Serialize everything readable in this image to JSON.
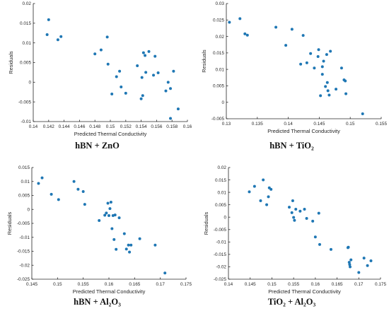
{
  "style": {
    "point_color": "#1f77b4",
    "axis_color": "#262626"
  },
  "chart_data": [
    {
      "type": "scatter",
      "title": "hBN + ZnO",
      "xlabel": "Predicted Thermal Conductivity",
      "ylabel": "Residuals",
      "xlim": [
        0.14,
        0.16
      ],
      "ylim": [
        -0.01,
        0.02
      ],
      "xticks": [
        "0.14",
        "0.142",
        "0.144",
        "0.146",
        "0.148",
        "0.15",
        "0.152",
        "0.154",
        "0.156",
        "0.158",
        "0.16"
      ],
      "yticks": [
        "-0.01",
        "-0.005",
        "0",
        "0.005",
        "0.01",
        "0.015",
        "0.02"
      ],
      "xtick_values": [
        0.14,
        0.142,
        0.144,
        0.146,
        0.148,
        0.15,
        0.152,
        0.154,
        0.156,
        0.158,
        0.16
      ],
      "ytick_values": [
        -0.01,
        -0.005,
        0,
        0.005,
        0.01,
        0.015,
        0.02
      ],
      "points": [
        [
          0.142,
          0.0159
        ],
        [
          0.1418,
          0.0121
        ],
        [
          0.1432,
          0.0108
        ],
        [
          0.1436,
          0.0116
        ],
        [
          0.148,
          0.0072
        ],
        [
          0.1488,
          0.0082
        ],
        [
          0.1496,
          0.0115
        ],
        [
          0.1497,
          0.0046
        ],
        [
          0.1502,
          -0.003
        ],
        [
          0.1508,
          0.0014
        ],
        [
          0.1512,
          0.0028
        ],
        [
          0.1514,
          -0.0012
        ],
        [
          0.152,
          -0.0028
        ],
        [
          0.1535,
          0.0042
        ],
        [
          0.154,
          -0.0042
        ],
        [
          0.1541,
          0.0012
        ],
        [
          0.1542,
          -0.0034
        ],
        [
          0.1543,
          0.0075
        ],
        [
          0.1545,
          0.0068
        ],
        [
          0.1546,
          0.0025
        ],
        [
          0.155,
          0.0078
        ],
        [
          0.1556,
          0.0018
        ],
        [
          0.1558,
          0.0066
        ],
        [
          0.1562,
          0.0024
        ],
        [
          0.1572,
          -0.0022
        ],
        [
          0.1575,
          0.0
        ],
        [
          0.1578,
          -0.0092
        ],
        [
          0.1582,
          0.0028
        ],
        [
          0.1578,
          -0.0016
        ],
        [
          0.1588,
          -0.0068
        ]
      ]
    },
    {
      "type": "scatter",
      "title": "hBN + TiO₂",
      "xlabel": "Predicted Thermal Conductivity",
      "ylabel": "Residuals",
      "xlim": [
        0.13,
        0.155
      ],
      "ylim": [
        -0.005,
        0.03
      ],
      "xticks": [
        "0.13",
        "0.135",
        "0.14",
        "0.145",
        "0.15",
        "0.155"
      ],
      "yticks": [
        "-0.005",
        "0",
        "0.005",
        "0.01",
        "0.015",
        "0.02",
        "0.025",
        "0.03"
      ],
      "xtick_values": [
        0.13,
        0.135,
        0.14,
        0.145,
        0.15,
        0.155
      ],
      "ytick_values": [
        -0.005,
        0,
        0.005,
        0.01,
        0.015,
        0.02,
        0.025,
        0.03
      ],
      "points": [
        [
          0.1305,
          0.0243
        ],
        [
          0.1322,
          0.0254
        ],
        [
          0.133,
          0.0208
        ],
        [
          0.1334,
          0.0204
        ],
        [
          0.138,
          0.0228
        ],
        [
          0.1396,
          0.0173
        ],
        [
          0.1406,
          0.0222
        ],
        [
          0.142,
          0.0116
        ],
        [
          0.1424,
          0.0203
        ],
        [
          0.143,
          0.012
        ],
        [
          0.1436,
          0.0148
        ],
        [
          0.1442,
          0.0104
        ],
        [
          0.1448,
          0.0139
        ],
        [
          0.1449,
          0.016
        ],
        [
          0.1452,
          0.002
        ],
        [
          0.1455,
          0.0108
        ],
        [
          0.1455,
          0.0085
        ],
        [
          0.1457,
          0.0125
        ],
        [
          0.146,
          0.0048
        ],
        [
          0.1462,
          0.0145
        ],
        [
          0.1463,
          0.006
        ],
        [
          0.1464,
          0.0035
        ],
        [
          0.1466,
          0.0022
        ],
        [
          0.1468,
          0.0155
        ],
        [
          0.1477,
          0.004
        ],
        [
          0.1486,
          0.0104
        ],
        [
          0.149,
          0.0068
        ],
        [
          0.1492,
          0.0065
        ],
        [
          0.1493,
          0.0026
        ],
        [
          0.152,
          -0.0035
        ]
      ]
    },
    {
      "type": "scatter",
      "title": "hBN + Al₂O₃",
      "xlabel": "Predicted Thermal Conductivity",
      "ylabel": "Residuals",
      "xlim": [
        0.145,
        0.175
      ],
      "ylim": [
        -0.025,
        0.015
      ],
      "xticks": [
        "0.145",
        "0.15",
        "0.155",
        "0.16",
        "0.165",
        "0.17",
        "0.175"
      ],
      "yticks": [
        "-0.025",
        "-0.02",
        "-0.015",
        "-0.01",
        "-0.005",
        "0",
        "0.005",
        "0.01",
        "0.015"
      ],
      "xtick_values": [
        0.145,
        0.15,
        0.155,
        0.16,
        0.165,
        0.17,
        0.175
      ],
      "ytick_values": [
        -0.025,
        -0.02,
        -0.015,
        -0.01,
        -0.005,
        0,
        0.005,
        0.01,
        0.015
      ],
      "points": [
        [
          0.1463,
          0.0093
        ],
        [
          0.147,
          0.0113
        ],
        [
          0.1488,
          0.0054
        ],
        [
          0.1502,
          0.0035
        ],
        [
          0.1532,
          0.01
        ],
        [
          0.154,
          0.0072
        ],
        [
          0.155,
          0.0064
        ],
        [
          0.1553,
          0.0018
        ],
        [
          0.1581,
          -0.004
        ],
        [
          0.1592,
          -0.0021
        ],
        [
          0.1595,
          -0.0013
        ],
        [
          0.1598,
          0.0022
        ],
        [
          0.16,
          -0.0022
        ],
        [
          0.1602,
          0.0003
        ],
        [
          0.1604,
          0.0026
        ],
        [
          0.1606,
          -0.0069
        ],
        [
          0.1608,
          -0.0022
        ],
        [
          0.161,
          -0.0108
        ],
        [
          0.1612,
          -0.002
        ],
        [
          0.1614,
          -0.0143
        ],
        [
          0.162,
          -0.003
        ],
        [
          0.163,
          -0.0087
        ],
        [
          0.1634,
          -0.0142
        ],
        [
          0.1638,
          -0.0128
        ],
        [
          0.164,
          -0.0153
        ],
        [
          0.1643,
          -0.0128
        ],
        [
          0.166,
          -0.0105
        ],
        [
          0.169,
          -0.0128
        ],
        [
          0.1709,
          -0.0228
        ]
      ]
    },
    {
      "type": "scatter",
      "title": "TiO₂ + Al₂O₃",
      "xlabel": "Predicted Thermal Conductivity",
      "ylabel": "Residuals",
      "xlim": [
        0.14,
        0.175
      ],
      "ylim": [
        -0.025,
        0.02
      ],
      "xticks": [
        "0.14",
        "0.145",
        "0.15",
        "0.155",
        "0.16",
        "0.165",
        "0.17",
        "0.175"
      ],
      "yticks": [
        "-0.025",
        "-0.02",
        "-0.015",
        "-0.01",
        "-0.005",
        "0",
        "0.005",
        "0.01",
        "0.015",
        "0.02"
      ],
      "xtick_values": [
        0.14,
        0.145,
        0.15,
        0.155,
        0.16,
        0.165,
        0.17,
        0.175
      ],
      "ytick_values": [
        -0.025,
        -0.02,
        -0.015,
        -0.01,
        -0.005,
        0,
        0.005,
        0.01,
        0.015,
        0.02
      ],
      "points": [
        [
          0.1448,
          0.0102
        ],
        [
          0.146,
          0.0124
        ],
        [
          0.1474,
          0.0066
        ],
        [
          0.148,
          0.015
        ],
        [
          0.1488,
          0.005
        ],
        [
          0.1492,
          0.0082
        ],
        [
          0.1494,
          0.0118
        ],
        [
          0.1498,
          0.0112
        ],
        [
          0.154,
          0.004
        ],
        [
          0.1546,
          0.0018
        ],
        [
          0.1548,
          0.0066
        ],
        [
          0.155,
          -0.0001
        ],
        [
          0.1552,
          -0.0013
        ],
        [
          0.1555,
          0.0032
        ],
        [
          0.1565,
          0.0024
        ],
        [
          0.1575,
          0.0032
        ],
        [
          0.158,
          -0.0005
        ],
        [
          0.1594,
          -0.0016
        ],
        [
          0.16,
          -0.008
        ],
        [
          0.1608,
          0.0016
        ],
        [
          0.161,
          -0.011
        ],
        [
          0.1636,
          -0.013
        ],
        [
          0.1675,
          -0.0123
        ],
        [
          0.1676,
          -0.0121
        ],
        [
          0.1678,
          -0.0182
        ],
        [
          0.1679,
          -0.0191
        ],
        [
          0.168,
          -0.02
        ],
        [
          0.1682,
          -0.0172
        ],
        [
          0.17,
          -0.0223
        ],
        [
          0.1712,
          -0.0165
        ],
        [
          0.172,
          -0.0195
        ],
        [
          0.1728,
          -0.0176
        ]
      ]
    }
  ]
}
